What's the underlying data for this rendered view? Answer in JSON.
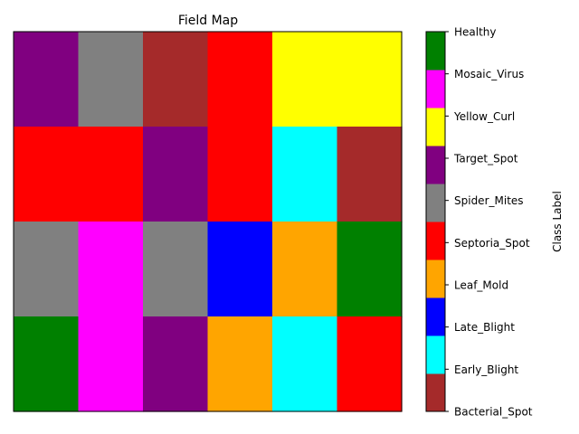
{
  "chart_data": {
    "type": "heatmap",
    "title": "Field Map",
    "xlabel": "",
    "ylabel": "",
    "grid": false,
    "rows": 4,
    "cols": 6,
    "classes": [
      {
        "name": "Bacterial_Spot",
        "color": "#a52a2a"
      },
      {
        "name": "Early_Blight",
        "color": "#00ffff"
      },
      {
        "name": "Late_Blight",
        "color": "#0000ff"
      },
      {
        "name": "Leaf_Mold",
        "color": "#ffa500"
      },
      {
        "name": "Septoria_Spot",
        "color": "#ff0000"
      },
      {
        "name": "Spider_Mites",
        "color": "#808080"
      },
      {
        "name": "Target_Spot",
        "color": "#800080"
      },
      {
        "name": "Yellow_Curl",
        "color": "#ffff00"
      },
      {
        "name": "Mosaic_Virus",
        "color": "#ff00ff"
      },
      {
        "name": "Healthy",
        "color": "#008000"
      }
    ],
    "values": [
      [
        "Target_Spot",
        "Spider_Mites",
        "Bacterial_Spot",
        "Septoria_Spot",
        "Yellow_Curl",
        "Yellow_Curl"
      ],
      [
        "Septoria_Spot",
        "Septoria_Spot",
        "Target_Spot",
        "Septoria_Spot",
        "Early_Blight",
        "Bacterial_Spot"
      ],
      [
        "Spider_Mites",
        "Mosaic_Virus",
        "Spider_Mites",
        "Late_Blight",
        "Leaf_Mold",
        "Healthy"
      ],
      [
        "Healthy",
        "Mosaic_Virus",
        "Target_Spot",
        "Leaf_Mold",
        "Early_Blight",
        "Septoria_Spot"
      ]
    ],
    "colorbar": {
      "label": "Class Label",
      "ticks": [
        "Healthy",
        "Mosaic_Virus",
        "Yellow_Curl",
        "Target_Spot",
        "Spider_Mites",
        "Septoria_Spot",
        "Leaf_Mold",
        "Late_Blight",
        "Early_Blight",
        "Bacterial_Spot"
      ]
    }
  }
}
